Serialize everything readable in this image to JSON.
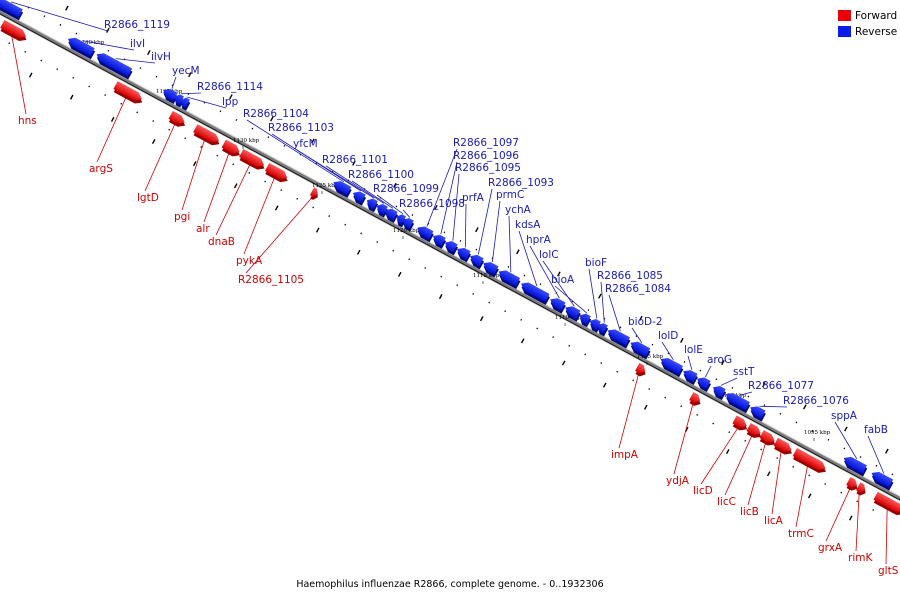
{
  "colors": {
    "forward": "#e8000b",
    "forward_dark": "#9a0000",
    "reverse": "#0a1ee8",
    "reverse_dark": "#000a7a",
    "forward_label": "#d10000",
    "reverse_label": "#1a1ab5",
    "backbone": "#808080"
  },
  "legend": {
    "forward": "Forward",
    "reverse": "Reverse"
  },
  "footer": "Haemophilus influenzae R2866, complete genome. - 0..1932306",
  "ticks": [
    "1140 kbp",
    "1135 kbp",
    "1130 kbp",
    "1125 kbp",
    "1120 kbp",
    "1115 kbp",
    "1110 kbp",
    "1105 kbp",
    "1100 kbp",
    "1095 kbp"
  ],
  "forward_genes": [
    {
      "name": "hns",
      "icon": "forward-arrow"
    },
    {
      "name": "argS",
      "icon": "forward-arrow"
    },
    {
      "name": "lgtD",
      "icon": "forward-arrow"
    },
    {
      "name": "pgi",
      "icon": "forward-arrow"
    },
    {
      "name": "alr",
      "icon": "forward-arrow"
    },
    {
      "name": "dnaB",
      "icon": "forward-arrow"
    },
    {
      "name": "pykA",
      "icon": "forward-arrow"
    },
    {
      "name": "R2866_1105",
      "icon": "forward-arrow"
    },
    {
      "name": "impA",
      "icon": "forward-arrow"
    },
    {
      "name": "ydjA",
      "icon": "forward-arrow"
    },
    {
      "name": "licD",
      "icon": "forward-arrow"
    },
    {
      "name": "licC",
      "icon": "forward-arrow"
    },
    {
      "name": "licB",
      "icon": "forward-arrow"
    },
    {
      "name": "licA",
      "icon": "forward-arrow"
    },
    {
      "name": "trmC",
      "icon": "forward-arrow"
    },
    {
      "name": "grxA",
      "icon": "forward-arrow"
    },
    {
      "name": "rimK",
      "icon": "forward-arrow"
    },
    {
      "name": "gltS",
      "icon": "forward-arrow"
    }
  ],
  "reverse_genes": [
    {
      "name": "R2866_1119",
      "icon": "reverse-arrow"
    },
    {
      "name": "ilvI",
      "icon": "reverse-arrow"
    },
    {
      "name": "ilvH",
      "icon": "reverse-arrow"
    },
    {
      "name": "yecM",
      "icon": "reverse-arrow"
    },
    {
      "name": "R2866_1114",
      "icon": "reverse-arrow"
    },
    {
      "name": "lpp",
      "icon": "reverse-arrow"
    },
    {
      "name": "R2866_1104",
      "icon": "reverse-arrow"
    },
    {
      "name": "R2866_1103",
      "icon": "reverse-arrow"
    },
    {
      "name": "yfcM",
      "icon": "reverse-arrow"
    },
    {
      "name": "R2866_1101",
      "icon": "reverse-arrow"
    },
    {
      "name": "R2866_1100",
      "icon": "reverse-arrow"
    },
    {
      "name": "R2866_1099",
      "icon": "reverse-arrow"
    },
    {
      "name": "R2866_1098",
      "icon": "reverse-arrow"
    },
    {
      "name": "R2866_1097",
      "icon": "reverse-arrow"
    },
    {
      "name": "R2866_1096",
      "icon": "reverse-arrow"
    },
    {
      "name": "R2866_1095",
      "icon": "reverse-arrow"
    },
    {
      "name": "prfA",
      "icon": "reverse-arrow"
    },
    {
      "name": "R2866_1093",
      "icon": "reverse-arrow"
    },
    {
      "name": "prmC",
      "icon": "reverse-arrow"
    },
    {
      "name": "ychA",
      "icon": "reverse-arrow"
    },
    {
      "name": "kdsA",
      "icon": "reverse-arrow"
    },
    {
      "name": "hprA",
      "icon": "reverse-arrow"
    },
    {
      "name": "lolC",
      "icon": "reverse-arrow"
    },
    {
      "name": "bioA",
      "icon": "reverse-arrow"
    },
    {
      "name": "bioF",
      "icon": "reverse-arrow"
    },
    {
      "name": "R2866_1085",
      "icon": "reverse-arrow"
    },
    {
      "name": "R2866_1084",
      "icon": "reverse-arrow"
    },
    {
      "name": "bioD-2",
      "icon": "reverse-arrow"
    },
    {
      "name": "lolD",
      "icon": "reverse-arrow"
    },
    {
      "name": "lolE",
      "icon": "reverse-arrow"
    },
    {
      "name": "aroG",
      "icon": "reverse-arrow"
    },
    {
      "name": "sstT",
      "icon": "reverse-arrow"
    },
    {
      "name": "R2866_1077",
      "icon": "reverse-arrow"
    },
    {
      "name": "R2866_1076",
      "icon": "reverse-arrow"
    },
    {
      "name": "sppA",
      "icon": "reverse-arrow"
    },
    {
      "name": "fabB",
      "icon": "reverse-arrow"
    }
  ]
}
